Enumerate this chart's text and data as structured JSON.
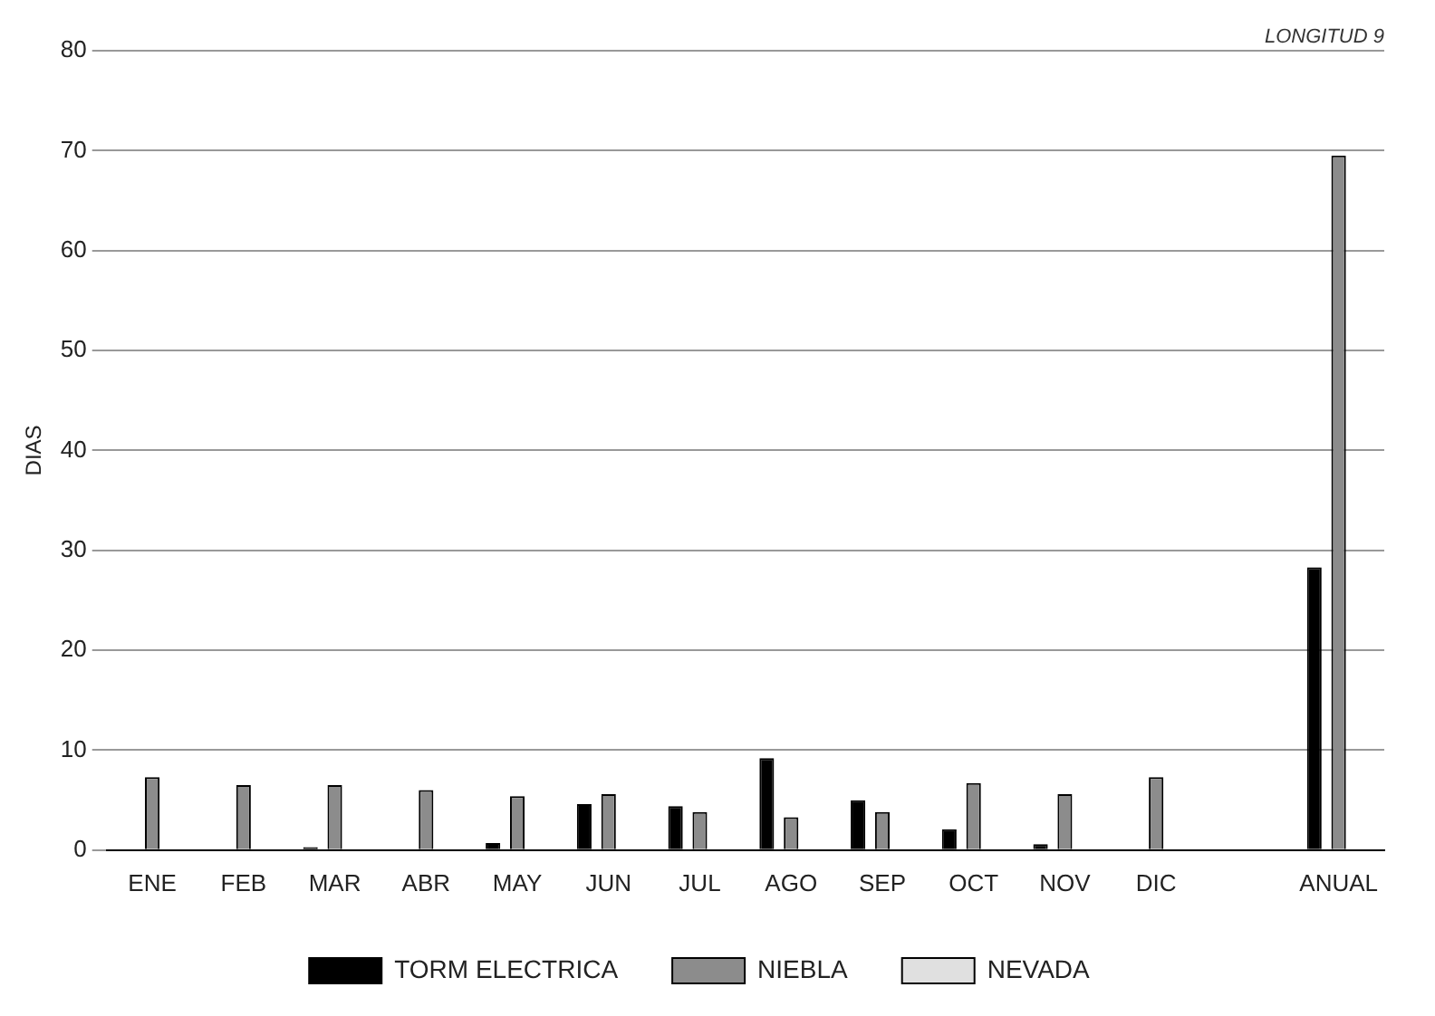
{
  "chart_data": {
    "type": "bar",
    "ylabel": "DIAS",
    "annotations": [
      "LONGITUD 9"
    ],
    "categories": [
      "ENE",
      "FEB",
      "MAR",
      "ABR",
      "MAY",
      "JUN",
      "JUL",
      "AGO",
      "SEP",
      "OCT",
      "NOV",
      "DIC",
      null,
      "ANUAL"
    ],
    "series": [
      {
        "name": "TORM ELECTRICA",
        "color": "#000000",
        "values": [
          0,
          0,
          0.3,
          0,
          0.7,
          4.6,
          4.4,
          9.2,
          5,
          2.1,
          0.6,
          0,
          null,
          28.3
        ]
      },
      {
        "name": "NIEBLA",
        "color": "#8c8c8c",
        "values": [
          7.3,
          6.5,
          6.5,
          6,
          5.4,
          5.6,
          3.8,
          3.3,
          3.8,
          6.7,
          5.6,
          7.3,
          null,
          69.5
        ]
      },
      {
        "name": "NEVADA",
        "color": "#e0e0e0",
        "values": [
          0,
          0,
          0,
          0,
          0,
          0,
          0,
          0,
          0,
          0,
          0,
          0,
          null,
          0
        ]
      }
    ],
    "ylim": [
      0,
      80
    ],
    "yticks": [
      0,
      10,
      20,
      30,
      40,
      50,
      60,
      70,
      80
    ],
    "grid": "y",
    "legend": "bottom"
  }
}
